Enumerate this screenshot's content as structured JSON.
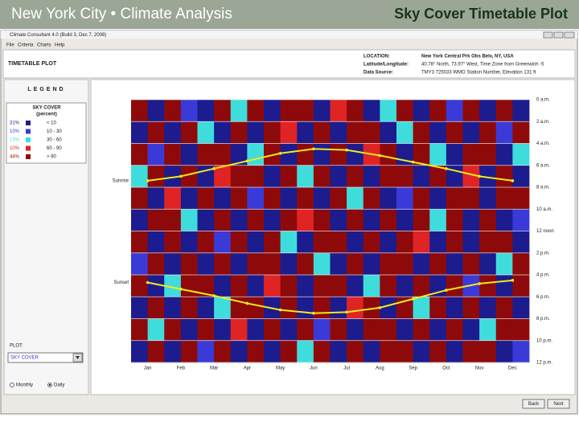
{
  "header": {
    "left_title": "New York City • Climate Analysis",
    "right_title": "Sky Cover Timetable Plot"
  },
  "window": {
    "title": "Climate Consultant 4.0 (Build 3, Dec 7, 2008)",
    "menu": [
      "File",
      "Criteria",
      "Charts",
      "Help"
    ],
    "panel_title": "TIMETABLE PLOT",
    "info": [
      {
        "label": "LOCATION:",
        "text": "New York Central Prk Obs Belv, NY, USA"
      },
      {
        "label": "Latitude/Longitude:",
        "text": "40.78° North, 73.97° West, Time Zone from Greenwich -5"
      },
      {
        "label": "Data Source:",
        "text": "TMY3   725033 WMO Station Number, Elevation 131 ft"
      }
    ],
    "legend_heading": "LEGEND",
    "plot_label": "PLOT:",
    "plot_select": "SKY COVER",
    "radios": [
      "Monthly",
      "Daily"
    ],
    "buttons": [
      "Back",
      "Next"
    ]
  },
  "chart_data": {
    "type": "heatmap",
    "legend": {
      "title": "SKY COVER",
      "subtitle": "(percent)",
      "values": [
        31,
        10,
        13,
        10,
        44
      ],
      "value_labels": [
        "31%",
        "10%",
        "13%",
        "10%",
        "44%"
      ],
      "ranges": [
        "< 10",
        "10  -  30",
        "30  -  60",
        "60  -  90",
        "> 90"
      ],
      "colors": [
        "#1c1c8e",
        "#3a3ad8",
        "#3fdcdc",
        "#e02424",
        "#8e0a0a"
      ]
    },
    "categories": [
      "Jan",
      "Feb",
      "Mar",
      "Apr",
      "May",
      "Jun",
      "Jul",
      "Aug",
      "Sep",
      "Oct",
      "Nov",
      "Dec"
    ],
    "ylim": [
      0,
      24
    ],
    "yticks": [
      {
        "value": 0,
        "label": "0 a.m."
      },
      {
        "value": 2,
        "label": "2 a.m."
      },
      {
        "value": 4,
        "label": "4 a.m."
      },
      {
        "value": 6,
        "label": "6 a.m."
      },
      {
        "value": 8,
        "label": "8 a.m."
      },
      {
        "value": 10,
        "label": "10 a.m."
      },
      {
        "value": 12,
        "label": "12 noon"
      },
      {
        "value": 14,
        "label": "2 p.m."
      },
      {
        "value": 16,
        "label": "4 p.m."
      },
      {
        "value": 18,
        "label": "6 p.m."
      },
      {
        "value": 20,
        "label": "8 p.m."
      },
      {
        "value": 22,
        "label": "10 p.m."
      },
      {
        "value": 24,
        "label": "12 p.m."
      }
    ],
    "cells": [
      [
        4,
        0,
        4,
        1,
        0,
        4,
        2,
        4,
        0,
        4,
        4,
        0,
        3,
        4,
        0,
        2,
        4,
        0,
        4,
        1,
        4,
        0,
        4,
        0
      ],
      [
        0,
        4,
        0,
        4,
        2,
        0,
        4,
        0,
        4,
        3,
        0,
        4,
        0,
        4,
        4,
        0,
        2,
        4,
        0,
        4,
        0,
        4,
        1,
        4
      ],
      [
        4,
        1,
        4,
        0,
        4,
        4,
        0,
        2,
        4,
        0,
        4,
        0,
        4,
        0,
        3,
        4,
        0,
        4,
        2,
        0,
        4,
        4,
        0,
        2
      ],
      [
        2,
        4,
        0,
        4,
        0,
        3,
        4,
        4,
        0,
        4,
        2,
        4,
        0,
        4,
        0,
        4,
        4,
        0,
        4,
        0,
        3,
        0,
        4,
        0
      ],
      [
        4,
        0,
        3,
        0,
        4,
        0,
        4,
        1,
        4,
        0,
        4,
        0,
        4,
        2,
        4,
        0,
        1,
        4,
        0,
        4,
        4,
        0,
        4,
        4
      ],
      [
        0,
        4,
        4,
        2,
        0,
        4,
        0,
        4,
        0,
        4,
        3,
        4,
        0,
        4,
        0,
        4,
        0,
        4,
        2,
        4,
        0,
        4,
        0,
        1
      ],
      [
        4,
        0,
        4,
        0,
        4,
        1,
        4,
        0,
        4,
        2,
        0,
        4,
        4,
        0,
        4,
        0,
        4,
        3,
        0,
        4,
        0,
        4,
        4,
        0
      ],
      [
        1,
        4,
        0,
        4,
        0,
        4,
        0,
        4,
        4,
        0,
        4,
        2,
        0,
        4,
        0,
        4,
        4,
        0,
        4,
        0,
        4,
        0,
        2,
        4
      ],
      [
        4,
        0,
        2,
        4,
        4,
        0,
        4,
        0,
        3,
        4,
        0,
        4,
        4,
        0,
        2,
        4,
        0,
        4,
        0,
        4,
        1,
        4,
        0,
        4
      ],
      [
        0,
        4,
        0,
        4,
        0,
        2,
        4,
        4,
        0,
        4,
        0,
        4,
        0,
        3,
        4,
        0,
        4,
        2,
        4,
        0,
        4,
        0,
        4,
        0
      ],
      [
        4,
        2,
        4,
        0,
        4,
        0,
        3,
        0,
        4,
        0,
        4,
        1,
        4,
        0,
        4,
        4,
        0,
        4,
        0,
        4,
        0,
        2,
        4,
        4
      ],
      [
        0,
        4,
        0,
        4,
        1,
        4,
        0,
        4,
        0,
        4,
        2,
        4,
        0,
        4,
        0,
        4,
        4,
        0,
        4,
        0,
        4,
        4,
        0,
        1
      ]
    ],
    "series": [
      {
        "name": "Sunrise",
        "color": "#f2ea1a",
        "values": [
          7.4,
          7.0,
          6.3,
          5.6,
          4.9,
          4.5,
          4.6,
          5.1,
          5.7,
          6.3,
          7.0,
          7.4
        ]
      },
      {
        "name": "Sunset",
        "color": "#f2ea1a",
        "values": [
          16.7,
          17.3,
          17.9,
          18.6,
          19.2,
          19.5,
          19.4,
          19.0,
          18.2,
          17.4,
          16.8,
          16.5
        ]
      }
    ],
    "grid": true
  }
}
